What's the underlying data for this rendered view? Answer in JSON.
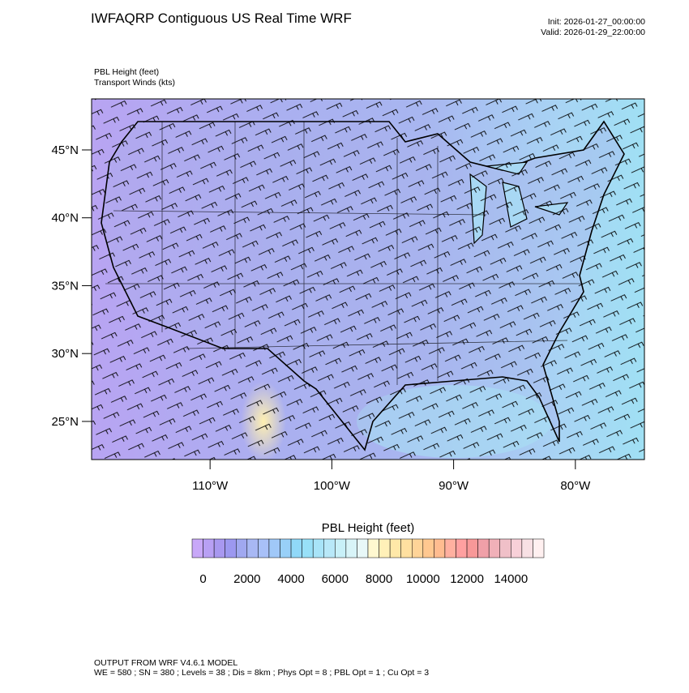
{
  "header": {
    "title": "IWFAQRP Contiguous US Real Time WRF",
    "init": "Init: 2026-01-27_00:00:00",
    "valid": "Valid: 2026-01-29_22:00:00",
    "field_label": "PBL Height   (feet)",
    "overlay_label": "Transport Winds   (kts)"
  },
  "map": {
    "xlim": [
      -119.73,
      -74.33
    ],
    "ylim": [
      22.19,
      48.76
    ],
    "xticks": [
      {
        "value": -110,
        "label": "110°W"
      },
      {
        "value": -100,
        "label": "100°W"
      },
      {
        "value": -90,
        "label": "90°W"
      },
      {
        "value": -80,
        "label": "80°W"
      }
    ],
    "yticks": [
      {
        "value": 45,
        "label": "45°N"
      },
      {
        "value": 40,
        "label": "40°N"
      },
      {
        "value": 35,
        "label": "35°N"
      },
      {
        "value": 30,
        "label": "30°N"
      },
      {
        "value": 25,
        "label": "25°N"
      }
    ]
  },
  "colorbar": {
    "title": "PBL Height  (feet)",
    "range": [
      -500,
      15500
    ],
    "ticks": [
      0,
      2000,
      4000,
      6000,
      8000,
      10000,
      12000,
      14000
    ],
    "colors": [
      "#c8a8f8",
      "#b8a0f4",
      "#a898f0",
      "#9c98f0",
      "#a0a8f0",
      "#a8b8f4",
      "#a8c0f8",
      "#a0c8f8",
      "#98d0f8",
      "#90d8f8",
      "#98e0f8",
      "#a8e4f8",
      "#b8e8f8",
      "#c8f0f8",
      "#d8f4f8",
      "#e8f8f8",
      "#fff8d0",
      "#fff0b8",
      "#ffe8a8",
      "#ffe0a0",
      "#ffd498",
      "#ffc890",
      "#ffbc90",
      "#ffb0a0",
      "#ffa0a0",
      "#f89898",
      "#f0a0a8",
      "#f0b0b8",
      "#f0c0c8",
      "#f8d0d8",
      "#f8e0e4",
      "#fff0f0"
    ]
  },
  "footer": {
    "line1": "OUTPUT FROM WRF V4.6.1 MODEL",
    "line2": "WE = 580 ; SN = 380 ; Levels = 38 ; Dis = 8km ; Phys Opt = 8 ; PBL Opt = 1 ; Cu Opt = 3"
  }
}
